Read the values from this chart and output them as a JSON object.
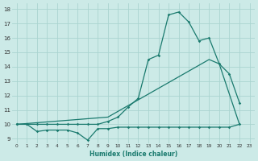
{
  "xlabel": "Humidex (Indice chaleur)",
  "xlim": [
    -0.5,
    23.5
  ],
  "ylim": [
    8.7,
    18.4
  ],
  "yticks": [
    9,
    10,
    11,
    12,
    13,
    14,
    15,
    16,
    17,
    18
  ],
  "xticks": [
    0,
    1,
    2,
    3,
    4,
    5,
    6,
    7,
    8,
    9,
    10,
    11,
    12,
    13,
    14,
    15,
    16,
    17,
    18,
    19,
    20,
    21,
    22,
    23
  ],
  "bg_color": "#cceae7",
  "grid_color": "#aad4d0",
  "line_color": "#1a7a6e",
  "line1_x": [
    0,
    1,
    2,
    3,
    4,
    5,
    6,
    7,
    8,
    9,
    10,
    11,
    12,
    13,
    14,
    15,
    16,
    17,
    18,
    19,
    20,
    21,
    22
  ],
  "line1_y": [
    10.0,
    10.0,
    9.5,
    9.6,
    9.6,
    9.6,
    9.4,
    8.9,
    9.7,
    9.7,
    9.8,
    9.8,
    9.8,
    9.8,
    9.8,
    9.8,
    9.8,
    9.8,
    9.8,
    9.8,
    9.8,
    9.8,
    10.0
  ],
  "line2_x": [
    0,
    1,
    2,
    3,
    4,
    5,
    6,
    7,
    8,
    9,
    10,
    11,
    12,
    13,
    14,
    15,
    16,
    17,
    18,
    19,
    20,
    21,
    22
  ],
  "line2_y": [
    10.0,
    10.0,
    10.0,
    10.0,
    10.0,
    10.0,
    10.0,
    10.0,
    10.0,
    10.2,
    10.5,
    11.2,
    11.8,
    14.5,
    14.8,
    17.6,
    17.8,
    17.1,
    15.8,
    16.0,
    14.2,
    13.5,
    11.5
  ],
  "line3_x": [
    0,
    9,
    19,
    20,
    22
  ],
  "line3_y": [
    10.0,
    10.5,
    14.5,
    14.2,
    10.0
  ]
}
